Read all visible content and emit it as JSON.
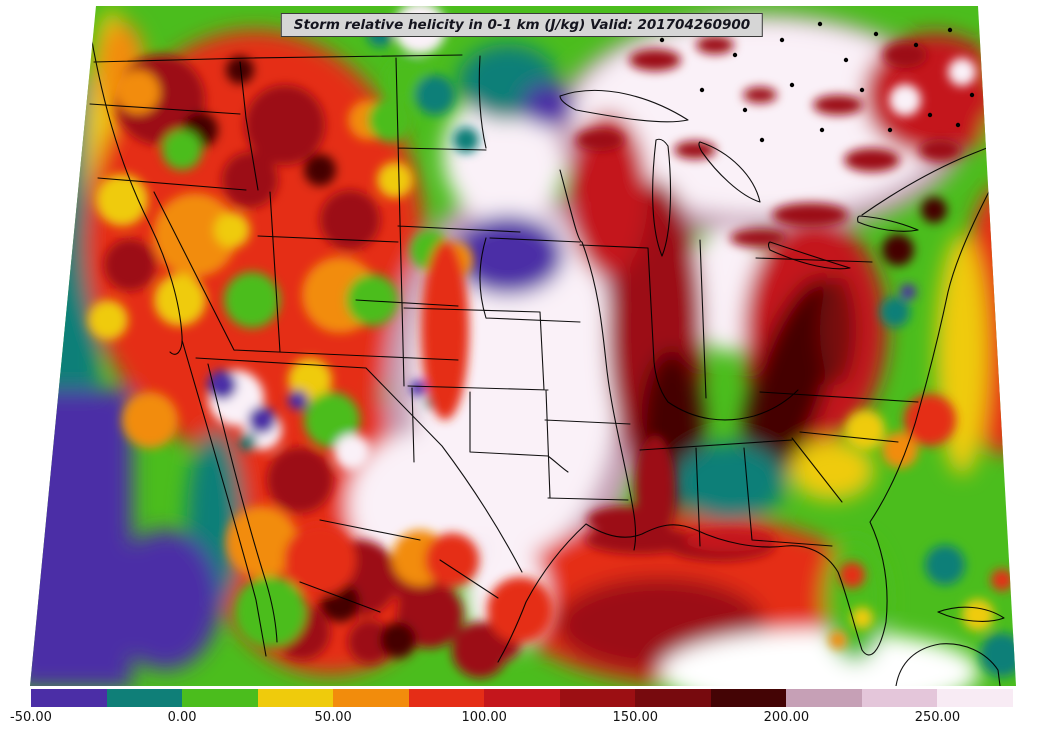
{
  "figure": {
    "title": "Storm relative helicity in 0-1 km (J/kg) Valid: 201704260900",
    "background": "#ffffff"
  },
  "colorbar": {
    "min": -50,
    "max": 275,
    "units": "J/kg",
    "segments": [
      {
        "from": -50,
        "to": -25,
        "color": "#4b2ea6"
      },
      {
        "from": -25,
        "to": 0,
        "color": "#0f7f78"
      },
      {
        "from": 0,
        "to": 25,
        "color": "#4bbd1d"
      },
      {
        "from": 25,
        "to": 50,
        "color": "#efcb0c"
      },
      {
        "from": 50,
        "to": 75,
        "color": "#f28c0c"
      },
      {
        "from": 75,
        "to": 100,
        "color": "#e52d17"
      },
      {
        "from": 100,
        "to": 125,
        "color": "#c4161c"
      },
      {
        "from": 125,
        "to": 150,
        "color": "#9c0f13"
      },
      {
        "from": 150,
        "to": 175,
        "color": "#770a0e"
      },
      {
        "from": 175,
        "to": 200,
        "color": "#440405"
      },
      {
        "from": 200,
        "to": 225,
        "color": "#c6a0b6"
      },
      {
        "from": 225,
        "to": 250,
        "color": "#e4c6da"
      },
      {
        "from": 250,
        "to": 275,
        "color": "#f8ebf4"
      }
    ],
    "ticks": [
      {
        "value": -50,
        "label": "-50.00"
      },
      {
        "value": 0,
        "label": "0.00"
      },
      {
        "value": 50,
        "label": "50.00"
      },
      {
        "value": 100,
        "label": "100.00"
      },
      {
        "value": 150,
        "label": "150.00"
      },
      {
        "value": 200,
        "label": "200.00"
      },
      {
        "value": 250,
        "label": "250.00"
      }
    ]
  },
  "chart_data": {
    "type": "heatmap",
    "title": "Storm relative helicity in 0-1 km (J/kg)",
    "valid": "201704260900",
    "units": "J/kg",
    "region": "Continental United States with portions of Canada and Mexico; filled-contour field with state borders, coastlines and Great Lakes outlines",
    "contour_levels": [
      -50,
      -25,
      0,
      25,
      50,
      75,
      100,
      125,
      150,
      175,
      200,
      225,
      250,
      275
    ],
    "palette": [
      "#4b2ea6",
      "#0f7f78",
      "#4bbd1d",
      "#efcb0c",
      "#f28c0c",
      "#e52d17",
      "#c4161c",
      "#9c0f13",
      "#770a0e",
      "#440405",
      "#c6a0b6",
      "#e4c6da",
      "#f8ebf4"
    ],
    "colorbar_tick_labels": [
      "-50.00",
      "0.00",
      "50.00",
      "100.00",
      "150.00",
      "200.00",
      "250.00"
    ],
    "legend_position": "bottom",
    "readings": [
      {
        "area": "Central Plains and mid-Mississippi Valley (IA/KS/OK/MO/AR/east TX)",
        "approx_value": "225 to >250"
      },
      {
        "area": "Upper Midwest, Great Lakes and southern Ontario",
        "approx_value": "200 to >250"
      },
      {
        "area": "Ring around central maximum (NE, IL/IN, TN valley, central Gulf Coast)",
        "approx_value": "100-200"
      },
      {
        "area": "Interior Mountain West (mottled)",
        "approx_value": "25-150"
      },
      {
        "area": "Nebraska/South Dakota pocket and Great Basin pockets",
        "approx_value": "-50 to 0"
      },
      {
        "area": "Southeast US and Florida",
        "approx_value": "0-75"
      },
      {
        "area": "Pacific coastal waters and Baja California",
        "approx_value": "-50 to 50"
      },
      {
        "area": "Appalachians and Quebec",
        "approx_value": "125-200"
      }
    ]
  }
}
